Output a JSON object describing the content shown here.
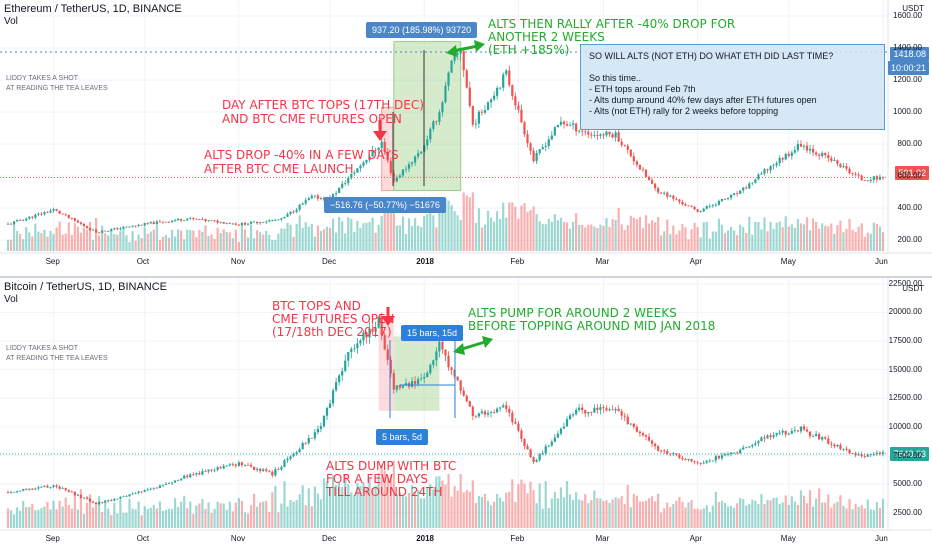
{
  "eth_pane": {
    "symbol": "Ethereum / TetherUS, 1D, BINANCE",
    "vol_label": "Vol",
    "watermark": "LIDDY TAKES A SHOT\nAT READING THE TEA LEAVES",
    "currency": "USDT",
    "last_price": "591.02",
    "crosshair_price": "1418.08",
    "countdown": "10:00:21",
    "colors": {
      "up": "#26a69a",
      "down": "#ef5350",
      "last": "#ef5350",
      "crosshair": "#4a86c8"
    },
    "annotations": {
      "btc_tops": "DAY AFTER BTC TOPS (17TH DEC)\nAND BTC CME FUTURES OPEN",
      "alts_drop": "ALTS DROP -40% IN A FEW DAYS\nAFTER BTC CME LAUNCH",
      "alts_rally": "ALTS THEN RALLY AFTER -40% DROP FOR\nANOTHER 2 WEEKS\n(ETH +185%)",
      "info_box": "SO WILL ALTS (NOT ETH) DO WHAT ETH DID LAST TIME?\n\nSo this time..\n- ETH tops around Feb 7th\n- Alts dump around 40% few days after ETH futures open\n- Alts (not ETH) rally for 2 weeks before topping"
    },
    "measure_up": "937.20 (185.98%) 93720",
    "measure_down": "−516.76 (−50.77%) −51676"
  },
  "btc_pane": {
    "symbol": "Bitcoin / TetherUS, 1D, BINANCE",
    "vol_label": "Vol",
    "watermark": "LIDDY TAKES A SHOT\nAT READING THE TEA LEAVES",
    "currency": "USDT",
    "last_price": "7640.03",
    "colors": {
      "up": "#26a69a",
      "down": "#ef5350",
      "last": "#26a69a"
    },
    "annotations": {
      "btc_tops": "BTC TOPS AND\nCME FUTURES OPEN\n(17/18th DEC 2017)",
      "alts_pump": "ALTS PUMP FOR AROUND 2 WEEKS\nBEFORE TOPPING AROUND MID JAN 2018",
      "alts_dump": "ALTS DUMP WITH BTC\nFOR A FEW DAYS\nTILL AROUND 24TH"
    },
    "measure_long": "15 bars, 15d",
    "measure_short": "5 bars, 5d"
  },
  "chart_data": [
    {
      "type": "candlestick",
      "title": "Ethereum / TetherUS, 1D, BINANCE",
      "x_tick_labels": [
        "Sep",
        "Oct",
        "Nov",
        "Dec",
        "2018",
        "Feb",
        "Mar",
        "Apr",
        "May",
        "Jun"
      ],
      "y_tick_labels": [
        "200.00",
        "400.00",
        "600.00",
        "800.00",
        "1000.00",
        "1200.00",
        "1400.00",
        "1600.00"
      ],
      "ylim": [
        120,
        1700
      ],
      "close_path": [
        [
          "2017-08-17",
          300
        ],
        [
          "2017-09-01",
          390
        ],
        [
          "2017-09-15",
          250
        ],
        [
          "2017-10-01",
          300
        ],
        [
          "2017-10-15",
          335
        ],
        [
          "2017-11-01",
          300
        ],
        [
          "2017-11-15",
          330
        ],
        [
          "2017-11-25",
          470
        ],
        [
          "2017-12-01",
          460
        ],
        [
          "2017-12-12",
          690
        ],
        [
          "2017-12-18",
          810
        ],
        [
          "2017-12-22",
          570
        ],
        [
          "2017-12-31",
          760
        ],
        [
          "2018-01-06",
          1000
        ],
        [
          "2018-01-10",
          1300
        ],
        [
          "2018-01-13",
          1390
        ],
        [
          "2018-01-17",
          920
        ],
        [
          "2018-01-28",
          1240
        ],
        [
          "2018-02-06",
          700
        ],
        [
          "2018-02-15",
          940
        ],
        [
          "2018-02-25",
          860
        ],
        [
          "2018-03-05",
          860
        ],
        [
          "2018-03-18",
          520
        ],
        [
          "2018-04-01",
          380
        ],
        [
          "2018-04-15",
          500
        ],
        [
          "2018-04-25",
          660
        ],
        [
          "2018-05-05",
          800
        ],
        [
          "2018-05-15",
          700
        ],
        [
          "2018-05-25",
          580
        ],
        [
          "2018-06-01",
          591
        ]
      ],
      "measures": [
        {
          "label": "937.20 (185.98%) 93720",
          "change": 937.2,
          "percent": 185.98,
          "ticks": 93720
        },
        {
          "label": "−516.76 (−50.77%) −51676",
          "change": -516.76,
          "percent": -50.77,
          "ticks": -51676
        }
      ],
      "last_price": 591.02
    },
    {
      "type": "candlestick",
      "title": "Bitcoin / TetherUS, 1D, BINANCE",
      "x_tick_labels": [
        "Sep",
        "Oct",
        "Nov",
        "Dec",
        "2018",
        "Feb",
        "Mar",
        "Apr",
        "May",
        "Jun"
      ],
      "y_tick_labels": [
        "2500.00",
        "5000.00",
        "7500.00",
        "10000.00",
        "12500.00",
        "15000.00",
        "17500.00",
        "20000.00",
        "22500.00"
      ],
      "ylim": [
        1000,
        23000
      ],
      "close_path": [
        [
          "2017-08-17",
          4300
        ],
        [
          "2017-09-01",
          4900
        ],
        [
          "2017-09-15",
          3300
        ],
        [
          "2017-10-01",
          4400
        ],
        [
          "2017-10-15",
          5700
        ],
        [
          "2017-11-01",
          6800
        ],
        [
          "2017-11-12",
          5900
        ],
        [
          "2017-11-28",
          10000
        ],
        [
          "2017-12-07",
          16500
        ],
        [
          "2017-12-17",
          19300
        ],
        [
          "2017-12-22",
          13500
        ],
        [
          "2017-12-31",
          14000
        ],
        [
          "2018-01-06",
          17100
        ],
        [
          "2018-01-17",
          11000
        ],
        [
          "2018-01-28",
          11700
        ],
        [
          "2018-02-06",
          6900
        ],
        [
          "2018-02-20",
          11400
        ],
        [
          "2018-03-05",
          11500
        ],
        [
          "2018-03-18",
          8200
        ],
        [
          "2018-04-01",
          6800
        ],
        [
          "2018-04-15",
          8000
        ],
        [
          "2018-04-25",
          9300
        ],
        [
          "2018-05-05",
          9800
        ],
        [
          "2018-05-15",
          8500
        ],
        [
          "2018-05-25",
          7400
        ],
        [
          "2018-06-01",
          7640
        ]
      ],
      "measures": [
        {
          "label": "15 bars, 15d",
          "bars": 15,
          "days": 15
        },
        {
          "label": "5 bars, 5d",
          "bars": 5,
          "days": 5
        }
      ],
      "last_price": 7640.03
    }
  ]
}
